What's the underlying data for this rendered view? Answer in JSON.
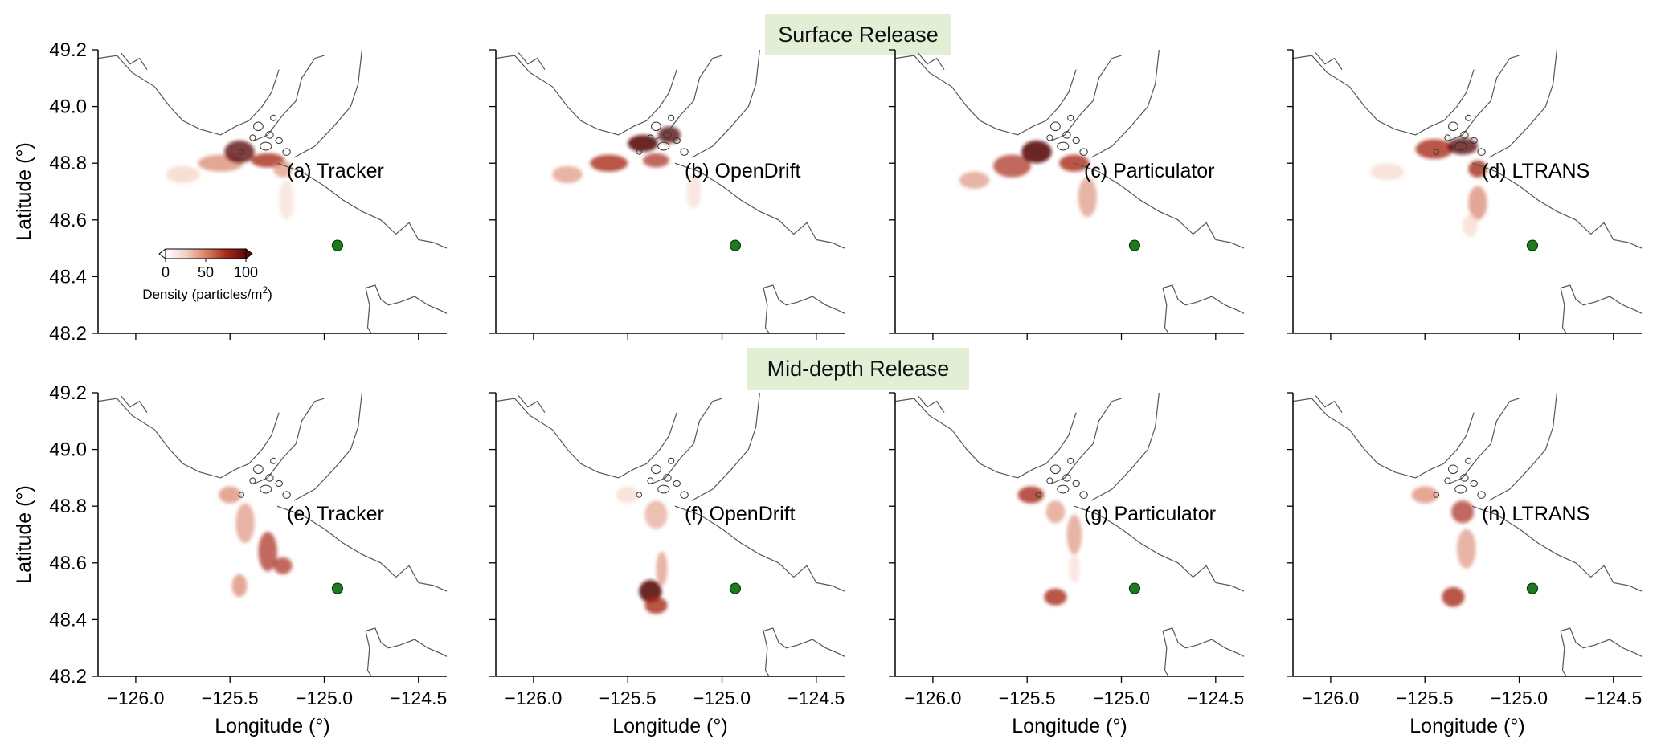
{
  "rows": [
    {
      "banner": "Surface Release",
      "panels": [
        {
          "label": "(a) Tracker",
          "model": "Tracker"
        },
        {
          "label": "(b) OpenDrift",
          "model": "OpenDrift"
        },
        {
          "label": "(c) Particulator",
          "model": "Particulator"
        },
        {
          "label": "(d) LTRANS",
          "model": "LTRANS"
        }
      ]
    },
    {
      "banner": "Mid-depth Release",
      "panels": [
        {
          "label": "(e) Tracker",
          "model": "Tracker"
        },
        {
          "label": "(f) OpenDrift",
          "model": "OpenDrift"
        },
        {
          "label": "(g) Particulator",
          "model": "Particulator"
        },
        {
          "label": "(h) LTRANS",
          "model": "LTRANS"
        }
      ]
    }
  ],
  "axes": {
    "xlabel": "Longitude (°)",
    "ylabel": "Latitude (°)",
    "xlim": [
      -126.2,
      -124.35
    ],
    "ylim": [
      48.2,
      49.2
    ],
    "xticks": [
      -126.0,
      -125.5,
      -125.0,
      -124.5
    ],
    "xtick_labels": [
      "−126.0",
      "−125.5",
      "−125.0",
      "−124.5"
    ],
    "yticks": [
      48.2,
      48.4,
      48.6,
      48.8,
      49.0,
      49.2
    ],
    "ytick_labels": [
      "48.2",
      "48.4",
      "48.6",
      "48.8",
      "49.0",
      "49.2"
    ]
  },
  "colorbar": {
    "ticks": [
      0,
      50,
      100
    ],
    "tick_labels": [
      "0",
      "50",
      "100"
    ],
    "label_main": "Density (particles/m",
    "label_sup": "2",
    "label_end": ")",
    "colors": [
      "#ffffff",
      "#f3d2c3",
      "#d9826a",
      "#a82a1c",
      "#5c0a0a"
    ]
  },
  "station": {
    "lon": -124.93,
    "lat": 48.51,
    "color": "#1e7a1e"
  },
  "coast_color": "#555555"
}
